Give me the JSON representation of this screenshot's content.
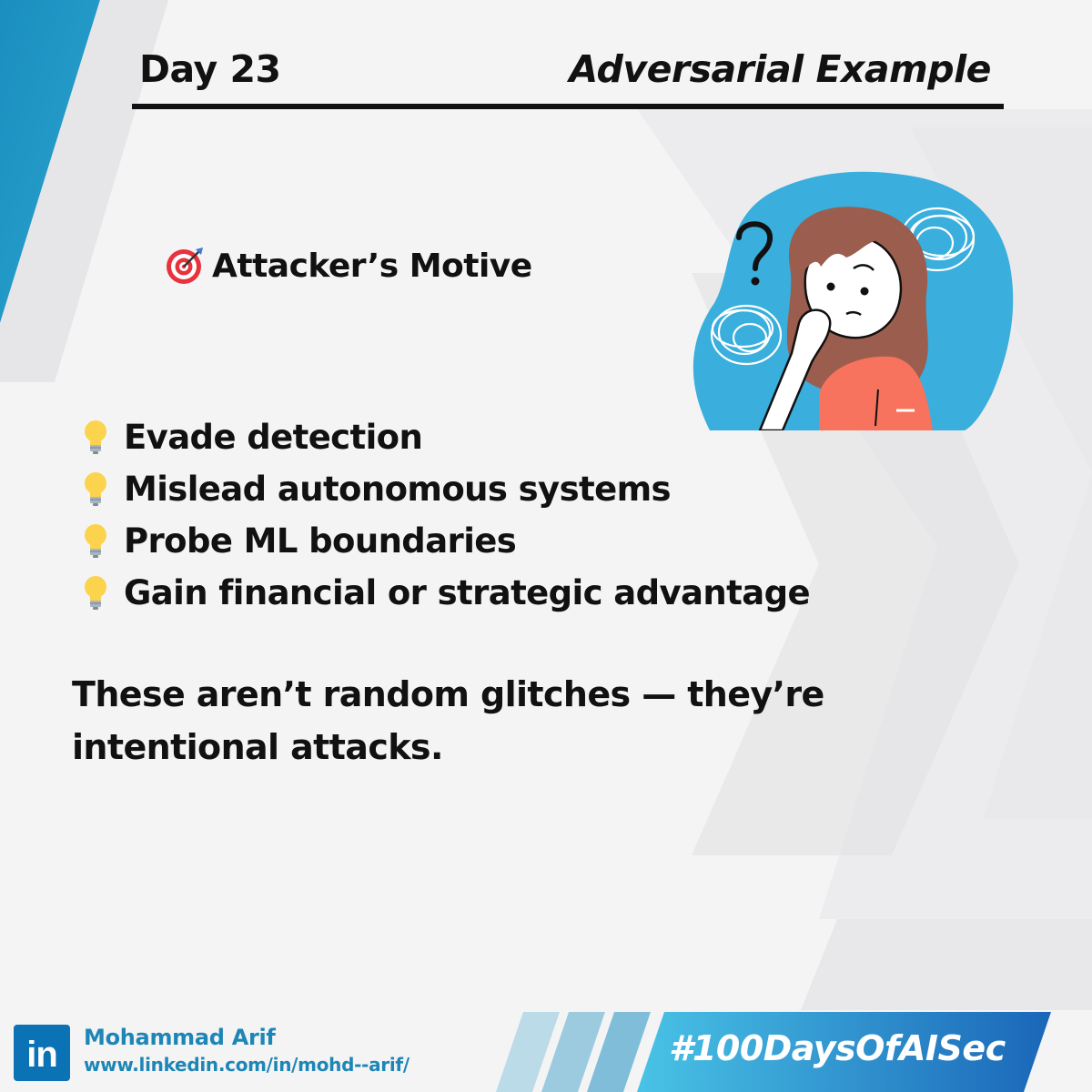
{
  "header": {
    "day": "Day 23",
    "topic": "Adversarial Example"
  },
  "section": {
    "icon": "target-icon",
    "heading": "Attacker’s Motive"
  },
  "illustration": {
    "icon": "confused-girl-illustration"
  },
  "motives": [
    {
      "icon": "lightbulb-icon",
      "label": "Evade detection"
    },
    {
      "icon": "lightbulb-icon",
      "label": "Mislead autonomous systems"
    },
    {
      "icon": "lightbulb-icon",
      "label": "Probe ML boundaries"
    },
    {
      "icon": "lightbulb-icon",
      "label": "Gain financial or strategic advantage"
    }
  ],
  "conclusion": {
    "line1": "These aren’t random glitches — they’re",
    "line2": "intentional attacks."
  },
  "footer": {
    "logo_text": "in",
    "author_name": "Mohammad Arif",
    "author_url": "www.linkedin.com/in/mohd--arif/",
    "hashtag": "#100DaysOfAISec"
  },
  "colors": {
    "accent_blue": "#1e86b6",
    "illustration_blob": "#3aaedc",
    "shirt": "#f7735d",
    "hashtag_gradient_start": "#49c3e6",
    "hashtag_gradient_end": "#1a66b8",
    "linkedin": "#0a72b5"
  }
}
